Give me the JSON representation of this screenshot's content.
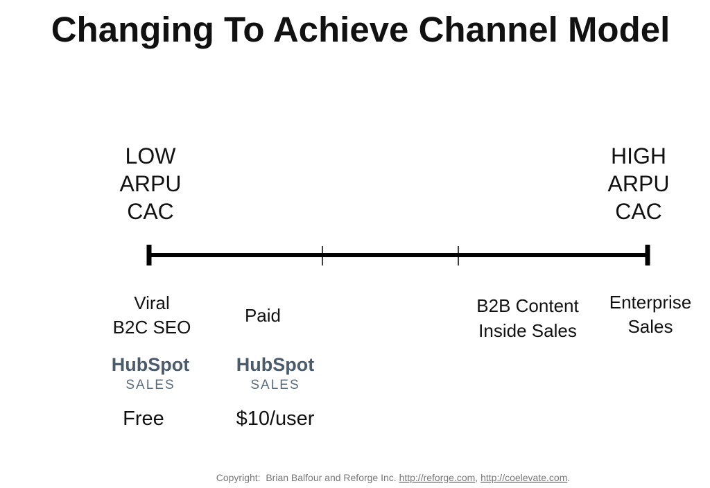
{
  "title": "Changing To Achieve Channel Model",
  "scale": {
    "low": [
      "LOW",
      "ARPU",
      "CAC"
    ],
    "high": [
      "HIGH",
      "ARPU",
      "CAC"
    ]
  },
  "channels": [
    {
      "lines": [
        "Viral",
        "B2C SEO"
      ]
    },
    {
      "lines": [
        "Paid"
      ]
    },
    {
      "lines": [
        "B2B Content",
        "Inside Sales"
      ]
    },
    {
      "lines": [
        "Enterprise",
        "Sales"
      ]
    }
  ],
  "products": [
    {
      "logo": "HubSpot",
      "sub": "SALES",
      "price": "Free"
    },
    {
      "logo": "HubSpot",
      "sub": "SALES",
      "price": "$10/user"
    }
  ],
  "footer": {
    "prefix": "Copyright:  Brian Balfour and Reforge Inc.",
    "link1": "http://reforge.com",
    "sep": ",",
    "link2": "http://coelevate.com",
    "end": "."
  }
}
